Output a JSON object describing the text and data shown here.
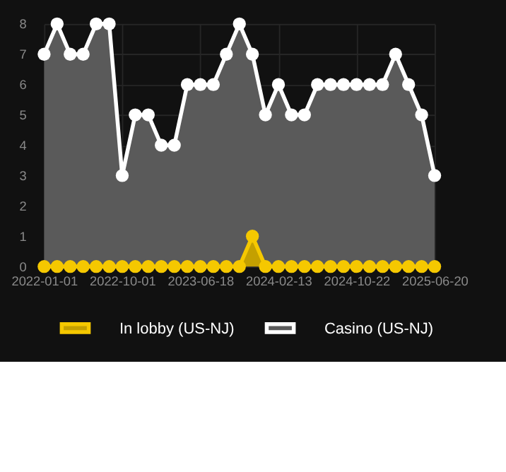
{
  "chart_data": {
    "type": "area",
    "categories": [
      "2022-01-01",
      null,
      null,
      null,
      null,
      null,
      "2022-10-01",
      null,
      null,
      null,
      null,
      null,
      "2023-06-18",
      null,
      null,
      null,
      null,
      null,
      "2024-02-13",
      null,
      null,
      null,
      null,
      null,
      "2024-10-22",
      null,
      null,
      null,
      null,
      null,
      "2025-06-20"
    ],
    "series": [
      {
        "name": "In lobby (US-NJ)",
        "color": "#f5c800",
        "values": [
          0,
          0,
          0,
          0,
          0,
          0,
          0,
          0,
          0,
          0,
          0,
          0,
          0,
          0,
          0,
          0,
          1,
          0,
          0,
          0,
          0,
          0,
          0,
          0,
          0,
          0,
          0,
          0,
          0,
          0,
          0
        ]
      },
      {
        "name": "Casino (US-NJ)",
        "color": "#ffffff",
        "values": [
          7,
          8,
          7,
          7,
          8,
          8,
          3,
          5,
          5,
          4,
          4,
          6,
          6,
          6,
          7,
          8,
          7,
          5,
          6,
          5,
          5,
          6,
          6,
          6,
          6,
          6,
          6,
          7,
          6,
          5,
          3
        ]
      }
    ],
    "ylim": [
      0,
      8
    ],
    "yticks": [
      0,
      1,
      2,
      3,
      4,
      5,
      6,
      7,
      8
    ],
    "grid": true,
    "legend": "bottom",
    "marker": "circle",
    "line_style": "solid"
  }
}
